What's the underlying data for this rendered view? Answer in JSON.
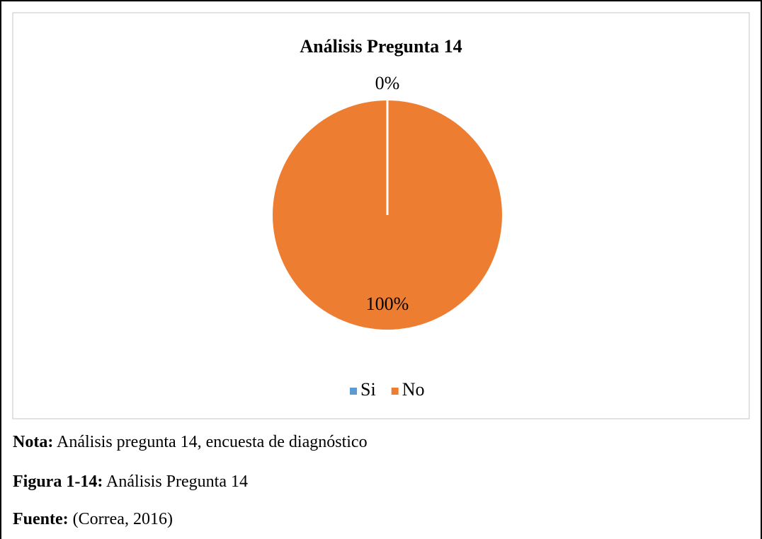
{
  "chart_data": {
    "type": "pie",
    "title": "Análisis Pregunta 14",
    "categories": [
      "Si",
      "No"
    ],
    "values": [
      0,
      100
    ],
    "value_labels": [
      "0%",
      "100%"
    ],
    "colors": [
      "#5b9bd5",
      "#ed7d31"
    ],
    "legend": "bottom"
  },
  "notes": [
    {
      "label": "Nota:",
      "text": "Análisis pregunta 14, encuesta de diagnóstico"
    },
    {
      "label": "Figura 1-14:",
      "text": "Análisis Pregunta 14"
    },
    {
      "label": "Fuente:",
      "text": "(Correa, 2016)"
    }
  ]
}
